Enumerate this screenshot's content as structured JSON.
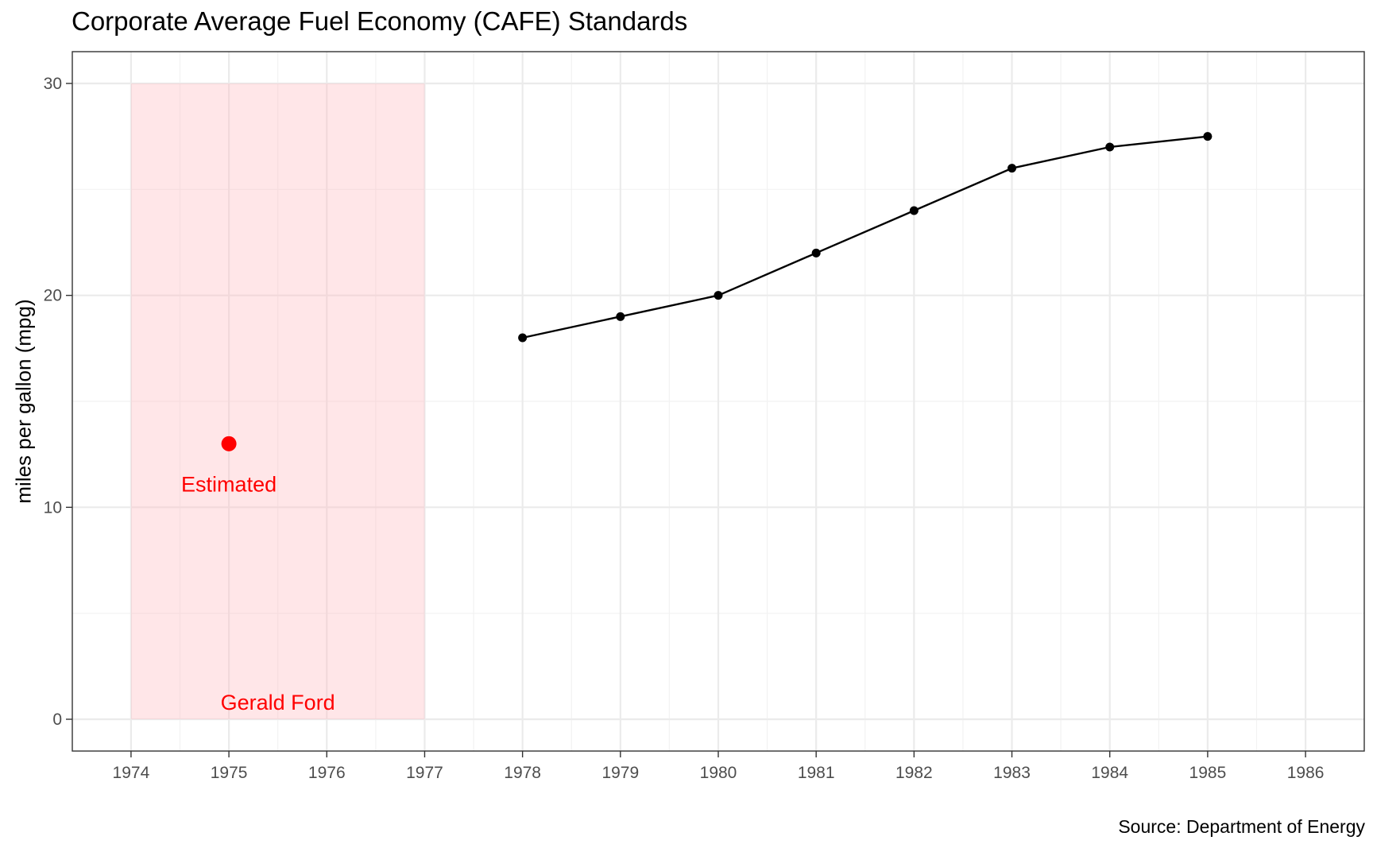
{
  "chart_data": {
    "type": "line",
    "title": "Corporate Average Fuel Economy (CAFE) Standards",
    "caption": "Source: Department of Energy",
    "xlabel": "",
    "ylabel": "miles per gallon (mpg)",
    "xlim": [
      1973.4,
      1986.6
    ],
    "ylim": [
      -1.5,
      31.5
    ],
    "x_ticks": [
      1974,
      1975,
      1976,
      1977,
      1978,
      1979,
      1980,
      1981,
      1982,
      1983,
      1984,
      1985,
      1986
    ],
    "y_ticks": [
      0,
      10,
      20,
      30
    ],
    "grid": true,
    "series": [
      {
        "x": [
          1978,
          1979,
          1980,
          1981,
          1982,
          1983,
          1984,
          1985
        ],
        "values": [
          18,
          19,
          20,
          22,
          24,
          26,
          27,
          27.5
        ],
        "color": "#000000"
      }
    ],
    "shaded_region": {
      "x": [
        1974,
        1977
      ],
      "y": [
        0,
        30
      ],
      "color": "#ffb6bc",
      "label": "Gerald Ford",
      "label_color": "#ff0000"
    },
    "highlight_point": {
      "x": 1975,
      "y": 13,
      "label": "Estimated",
      "color": "#ff0000"
    }
  }
}
